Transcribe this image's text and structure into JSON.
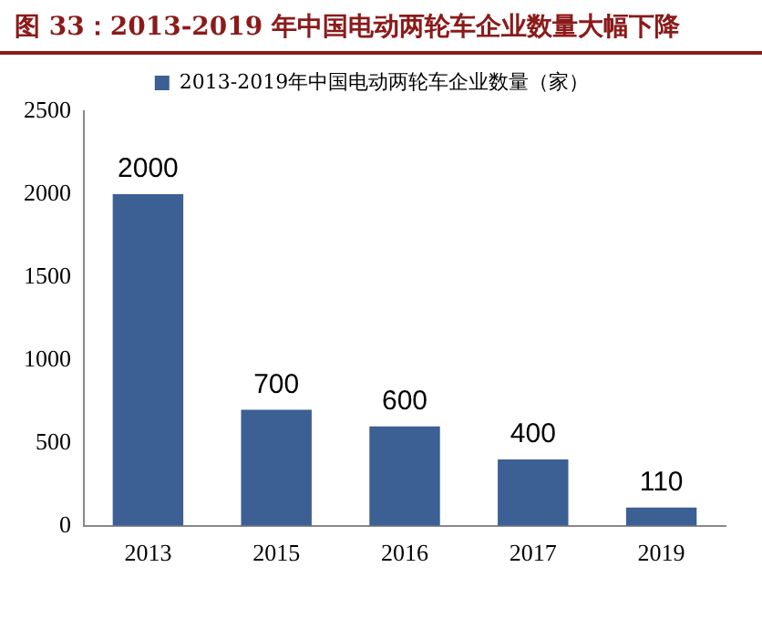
{
  "chart_data": {
    "type": "bar",
    "title": "图 33：2013-2019 年中国电动两轮车企业数量大幅下降",
    "categories": [
      "2013",
      "2015",
      "2016",
      "2017",
      "2019"
    ],
    "series": [
      {
        "name": "2013-2019年中国电动两轮车企业数量（家）",
        "color": "#3c5f94",
        "values": [
          2000,
          700,
          600,
          400,
          110
        ]
      }
    ],
    "ylim": [
      0,
      2500
    ],
    "yticks": [
      0,
      500,
      1000,
      1500,
      2000,
      2500
    ],
    "grid": false,
    "legend": "top",
    "data_labels": true
  }
}
